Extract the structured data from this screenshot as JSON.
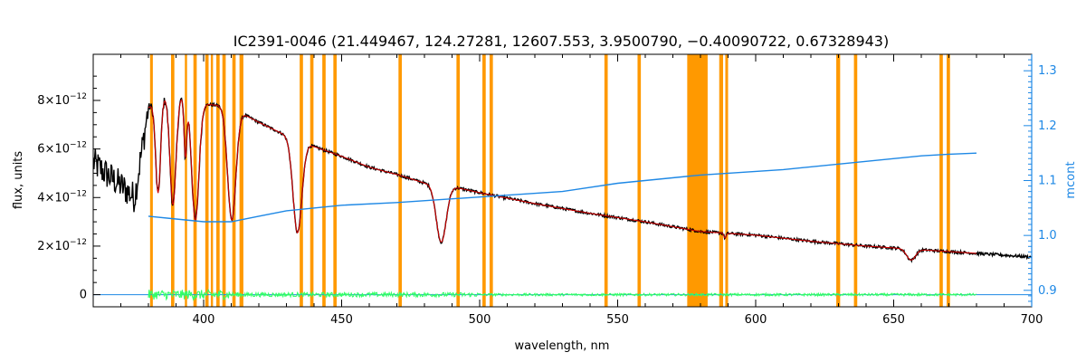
{
  "chart_data": {
    "type": "line",
    "title": "IC2391-0046    (21.449467, 124.27281, 12607.553, 3.9500790, −0.40090722, 0.67328943)",
    "xlabel": "wavelength, nm",
    "ylabel": "flux, units",
    "y2label": "mcont",
    "xlim": [
      360,
      700
    ],
    "ylim": [
      -5e-13,
      9.9e-12
    ],
    "y2lim": [
      0.87,
      1.33
    ],
    "x_ticks": [
      400,
      450,
      500,
      550,
      600,
      650,
      700
    ],
    "y_ticks": [
      {
        "value": 0,
        "base": "0",
        "exp": ""
      },
      {
        "value": 2e-12,
        "base": "2×10",
        "exp": "−12"
      },
      {
        "value": 4e-12,
        "base": "4×10",
        "exp": "−12"
      },
      {
        "value": 6e-12,
        "base": "6×10",
        "exp": "−12"
      },
      {
        "value": 8e-12,
        "base": "8×10",
        "exp": "−12"
      }
    ],
    "y2_ticks": [
      0.9,
      1.0,
      1.1,
      1.2,
      1.3
    ],
    "grid": false,
    "colors": {
      "observed": "#000000",
      "model": "#cc0000",
      "mcont": "#1e88e5",
      "residual": "#33ff66",
      "mask": "#ff9900",
      "right_axis": "#1e88e5"
    },
    "masked_ranges": [
      [
        380.6,
        381.6
      ],
      [
        388.2,
        389.4
      ],
      [
        393.2,
        394.0
      ],
      [
        396.3,
        397.5
      ],
      [
        400.6,
        401.8
      ],
      [
        402.6,
        403.4
      ],
      [
        404.6,
        405.8
      ],
      [
        406.8,
        408.0
      ],
      [
        410.4,
        411.6
      ],
      [
        413.0,
        414.4
      ],
      [
        434.8,
        436.0
      ],
      [
        438.6,
        439.8
      ],
      [
        443.0,
        444.2
      ],
      [
        447.0,
        448.2
      ],
      [
        470.6,
        471.8
      ],
      [
        491.6,
        492.8
      ],
      [
        501.0,
        502.2
      ],
      [
        503.6,
        504.8
      ],
      [
        545.2,
        546.4
      ],
      [
        557.2,
        558.4
      ],
      [
        575.2,
        582.6
      ],
      [
        586.8,
        588.2
      ],
      [
        589.0,
        590.0
      ],
      [
        629.2,
        630.6
      ],
      [
        635.6,
        636.8
      ],
      [
        666.6,
        667.8
      ],
      [
        669.2,
        670.4
      ]
    ],
    "continuum_anchors": [
      [
        360,
        5.45e-12
      ],
      [
        365,
        4.95e-12
      ],
      [
        370,
        4.5e-12
      ],
      [
        375,
        4e-12
      ],
      [
        380,
        7.7e-12
      ],
      [
        385,
        8.2e-12
      ],
      [
        390,
        8.2e-12
      ],
      [
        395,
        8.1e-12
      ],
      [
        400,
        7.85e-12
      ],
      [
        405,
        7.8e-12
      ],
      [
        410,
        7.7e-12
      ],
      [
        420,
        7.1e-12
      ],
      [
        430,
        6.55e-12
      ],
      [
        440,
        6.1e-12
      ],
      [
        450,
        5.7e-12
      ],
      [
        460,
        5.25e-12
      ],
      [
        470,
        4.95e-12
      ],
      [
        480,
        4.6e-12
      ],
      [
        490,
        4.45e-12
      ],
      [
        500,
        4.2e-12
      ],
      [
        520,
        3.75e-12
      ],
      [
        540,
        3.35e-12
      ],
      [
        560,
        3e-12
      ],
      [
        580,
        2.6e-12
      ],
      [
        600,
        2.45e-12
      ],
      [
        620,
        2.2e-12
      ],
      [
        640,
        2e-12
      ],
      [
        660,
        1.85e-12
      ],
      [
        680,
        1.7e-12
      ],
      [
        700,
        1.55e-12
      ]
    ],
    "absorption_lines": [
      {
        "center": 383.5,
        "depth": 0.48,
        "width": 0.9
      },
      {
        "center": 388.9,
        "depth": 0.55,
        "width": 1.1
      },
      {
        "center": 393.4,
        "depth": 0.3,
        "width": 0.5
      },
      {
        "center": 397.0,
        "depth": 0.62,
        "width": 1.3
      },
      {
        "center": 410.2,
        "depth": 0.6,
        "width": 1.5
      },
      {
        "center": 434.0,
        "depth": 0.6,
        "width": 1.6
      },
      {
        "center": 486.1,
        "depth": 0.52,
        "width": 1.8
      },
      {
        "center": 588.9,
        "depth": 0.08,
        "width": 0.4
      },
      {
        "center": 656.3,
        "depth": 0.24,
        "width": 1.6
      }
    ],
    "mcont_points": [
      [
        380,
        1.035
      ],
      [
        390,
        1.03
      ],
      [
        400,
        1.025
      ],
      [
        410,
        1.025
      ],
      [
        420,
        1.035
      ],
      [
        430,
        1.045
      ],
      [
        450,
        1.055
      ],
      [
        470,
        1.06
      ],
      [
        500,
        1.07
      ],
      [
        530,
        1.08
      ],
      [
        550,
        1.095
      ],
      [
        580,
        1.11
      ],
      [
        610,
        1.12
      ],
      [
        640,
        1.135
      ],
      [
        660,
        1.145
      ],
      [
        670,
        1.148
      ],
      [
        680,
        1.15
      ]
    ],
    "residual_range": [
      380,
      680
    ]
  }
}
